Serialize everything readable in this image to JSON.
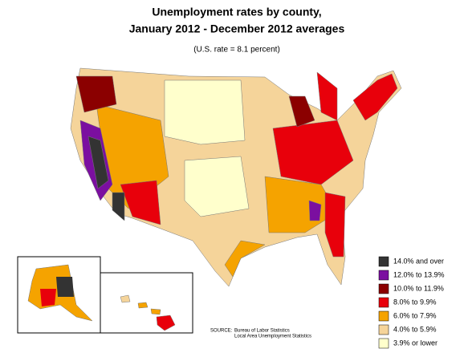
{
  "title": [
    "Unemployment rates by county,",
    "January 2012 - December 2012 averages"
  ],
  "subtitle": "(U.S. rate = 8.1 percent)",
  "legend": [
    {
      "label": "14.0% and over",
      "color": "#333333"
    },
    {
      "label": "12.0% to 13.9%",
      "color": "#7b0fa0"
    },
    {
      "label": "10.0% to 11.9%",
      "color": "#8b0000"
    },
    {
      "label": "8.0% to 9.9%",
      "color": "#e8000b"
    },
    {
      "label": "6.0% to 7.9%",
      "color": "#f5a300"
    },
    {
      "label": "4.0% to 5.9%",
      "color": "#f5d49a"
    },
    {
      "label": "3.9% or lower",
      "color": "#ffffcc"
    }
  ],
  "source": {
    "label": "SOURCE:",
    "lines": [
      "Bureau of Labor Statistics",
      "Local Area Unemployment Statistics"
    ]
  }
}
